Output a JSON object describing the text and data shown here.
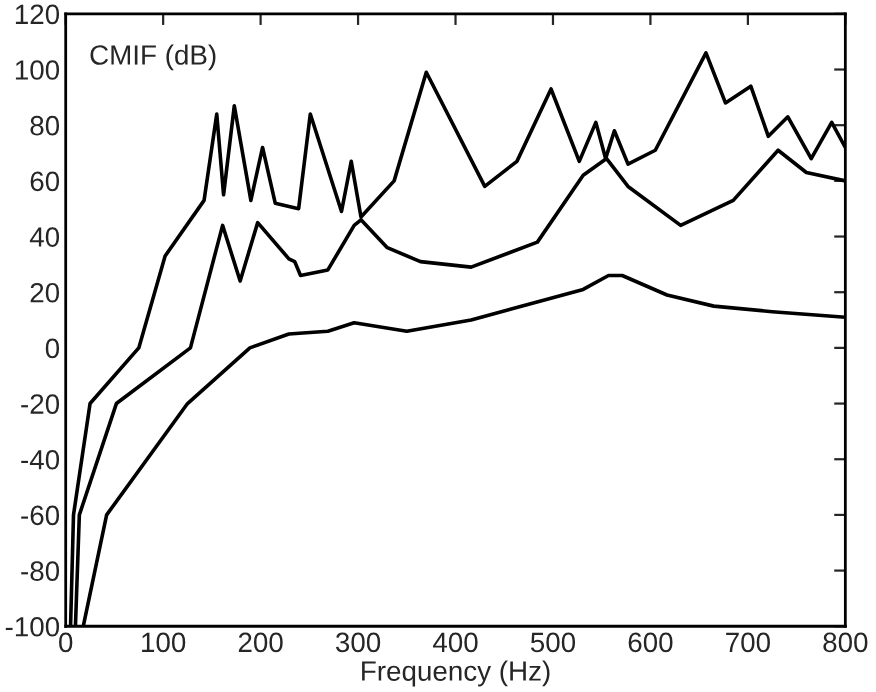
{
  "chart_data": {
    "type": "line",
    "xlabel": "Frequency (Hz)",
    "annotations": [
      "CMIF (dB)"
    ],
    "xlim": [
      0,
      800
    ],
    "ylim": [
      -100,
      120
    ],
    "xticks": [
      0,
      100,
      200,
      300,
      400,
      500,
      600,
      700,
      800
    ],
    "yticks": [
      -100,
      -80,
      -60,
      -40,
      -20,
      0,
      20,
      40,
      60,
      80,
      100,
      120
    ],
    "grid": false,
    "legend": false,
    "marker": "none",
    "line_style": "solid",
    "series": [
      {
        "color": "#000000",
        "x": [
          5,
          8,
          25,
          75,
          102,
          142,
          155,
          162,
          173,
          190,
          202,
          215,
          239,
          251,
          283,
          293,
          303,
          337,
          370,
          430,
          463,
          498,
          527,
          544,
          554,
          563,
          577,
          605,
          657,
          677,
          703,
          721,
          741,
          765,
          786,
          800
        ],
        "values": [
          -100,
          -60,
          -20,
          0,
          33,
          53,
          84,
          55,
          87,
          53,
          72,
          52,
          50,
          84,
          49,
          67,
          47,
          60,
          99,
          58,
          67,
          93,
          67,
          81,
          68,
          78,
          66,
          71,
          106,
          88,
          94,
          76,
          83,
          68,
          81,
          72
        ]
      },
      {
        "color": "#000000",
        "x": [
          10,
          14,
          52,
          128,
          161,
          179,
          197,
          229,
          235,
          241,
          269,
          296,
          303,
          330,
          364,
          416,
          484,
          531,
          555,
          577,
          631,
          685,
          731,
          760,
          800
        ],
        "values": [
          -100,
          -60,
          -20,
          0,
          44,
          24,
          45,
          32,
          31,
          26,
          28,
          44,
          46,
          36,
          31,
          29,
          38,
          62,
          68,
          58,
          44,
          53,
          71,
          63,
          60
        ]
      },
      {
        "color": "#000000",
        "x": [
          18,
          42,
          125,
          189,
          229,
          269,
          296,
          350,
          416,
          531,
          557,
          571,
          617,
          665,
          725,
          800
        ],
        "values": [
          -100,
          -60,
          -20,
          0,
          5,
          6,
          9,
          6,
          10,
          21,
          26,
          26,
          19,
          15,
          13,
          11
        ]
      }
    ]
  }
}
